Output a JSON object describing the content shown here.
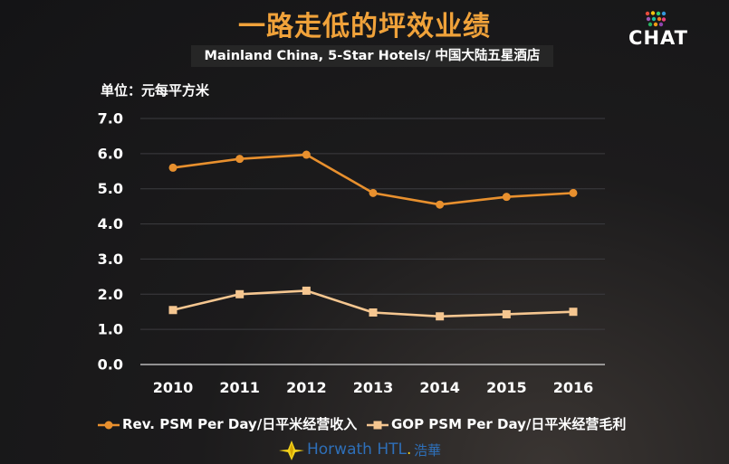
{
  "header": {
    "title": "一路走低的坪效业绩",
    "subtitle": "Mainland China, 5-Star Hotels/ 中国大陆五星酒店",
    "unit": "单位：元每平方米"
  },
  "logo": {
    "text": "CHAT"
  },
  "footer": {
    "brand": "Horwath HTL",
    "brand_dot": ".",
    "brand_cn": "浩華"
  },
  "colors": {
    "rev": "#e8902e",
    "gop": "#f5c690",
    "title": "#f0a23a",
    "brand": "#2e6fb8"
  },
  "chart_data": {
    "type": "line",
    "title": "一路走低的坪效业绩",
    "subtitle": "Mainland China, 5-Star Hotels/ 中国大陆五星酒店",
    "ylabel": "单位：元每平方米",
    "xlabel": "",
    "categories": [
      "2010",
      "2011",
      "2012",
      "2013",
      "2014",
      "2015",
      "2016"
    ],
    "ylim": [
      0,
      7
    ],
    "yticks": [
      "0.0",
      "1.0",
      "2.0",
      "3.0",
      "4.0",
      "5.0",
      "6.0",
      "7.0"
    ],
    "grid": true,
    "legend_position": "bottom",
    "series": [
      {
        "name": "Rev. PSM Per Day/日平米经营收入",
        "marker": "circle",
        "values": [
          5.6,
          5.85,
          5.97,
          4.88,
          4.55,
          4.77,
          4.88
        ]
      },
      {
        "name": "GOP PSM Per Day/日平米经营毛利",
        "marker": "square",
        "values": [
          1.55,
          2.0,
          2.1,
          1.48,
          1.37,
          1.43,
          1.5
        ]
      }
    ]
  }
}
